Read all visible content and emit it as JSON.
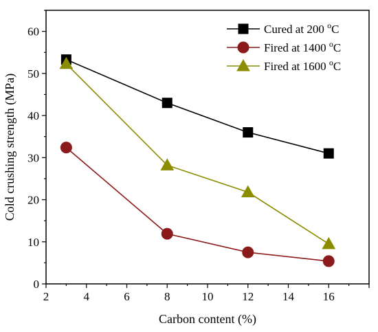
{
  "chart_data": {
    "type": "line",
    "xlabel": "Carbon content (%)",
    "ylabel": "Cold crushing strength (MPa)",
    "xlim": [
      2,
      18
    ],
    "ylim": [
      0,
      65
    ],
    "xticks": [
      2,
      4,
      6,
      8,
      10,
      12,
      14,
      16
    ],
    "yticks": [
      0,
      10,
      20,
      30,
      40,
      50,
      60
    ],
    "grid": false,
    "legend_position": "top-right",
    "x": [
      3,
      8,
      12,
      16
    ],
    "series": [
      {
        "name": "Cured at 200 °C",
        "label_main": "Cured at 200 ",
        "label_sup": "o",
        "label_unit": "C",
        "marker": "square",
        "color": "#000000",
        "values": [
          53.3,
          43.0,
          36.0,
          31.0
        ]
      },
      {
        "name": "Fired at 1400 °C",
        "label_main": "Fired at 1400 ",
        "label_sup": "o",
        "label_unit": "C",
        "marker": "circle",
        "color": "#8b1a1a",
        "values": [
          32.4,
          11.9,
          7.5,
          5.4
        ]
      },
      {
        "name": "Fired at 1600 °C",
        "label_main": "Fired at 1600 ",
        "label_sup": "o",
        "label_unit": "C",
        "marker": "triangle",
        "color": "#8c8c00",
        "values": [
          52.3,
          28.2,
          21.8,
          9.5
        ]
      }
    ]
  }
}
